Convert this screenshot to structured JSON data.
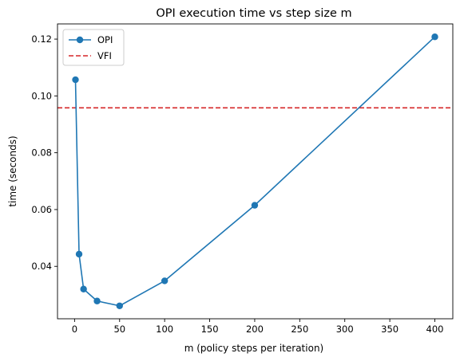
{
  "chart_data": {
    "type": "line",
    "title": "OPI execution time vs step size m",
    "xlabel": "m (policy steps per iteration)",
    "ylabel": "time (seconds)",
    "xlim": [
      -18.95,
      419.95
    ],
    "ylim": [
      0.02155,
      0.12535
    ],
    "xticks": [
      0,
      50,
      100,
      150,
      200,
      250,
      300,
      350,
      400
    ],
    "yticks": [
      0.04,
      0.06,
      0.08,
      0.1,
      0.12
    ],
    "ytick_labels": [
      "0.04",
      "0.06",
      "0.08",
      "0.10",
      "0.12"
    ],
    "grid": false,
    "legend_position": "top-left",
    "series": [
      {
        "name": "OPI",
        "style": "line-with-markers",
        "color": "#1f77b4",
        "x": [
          1,
          5,
          10,
          25,
          50,
          100,
          200,
          400
        ],
        "y": [
          0.1057,
          0.0443,
          0.032,
          0.0278,
          0.0261,
          0.0349,
          0.0615,
          0.1208
        ]
      }
    ],
    "hlines": [
      {
        "name": "VFI",
        "style": "dashed",
        "color": "#d62728",
        "y": 0.0958
      }
    ]
  }
}
